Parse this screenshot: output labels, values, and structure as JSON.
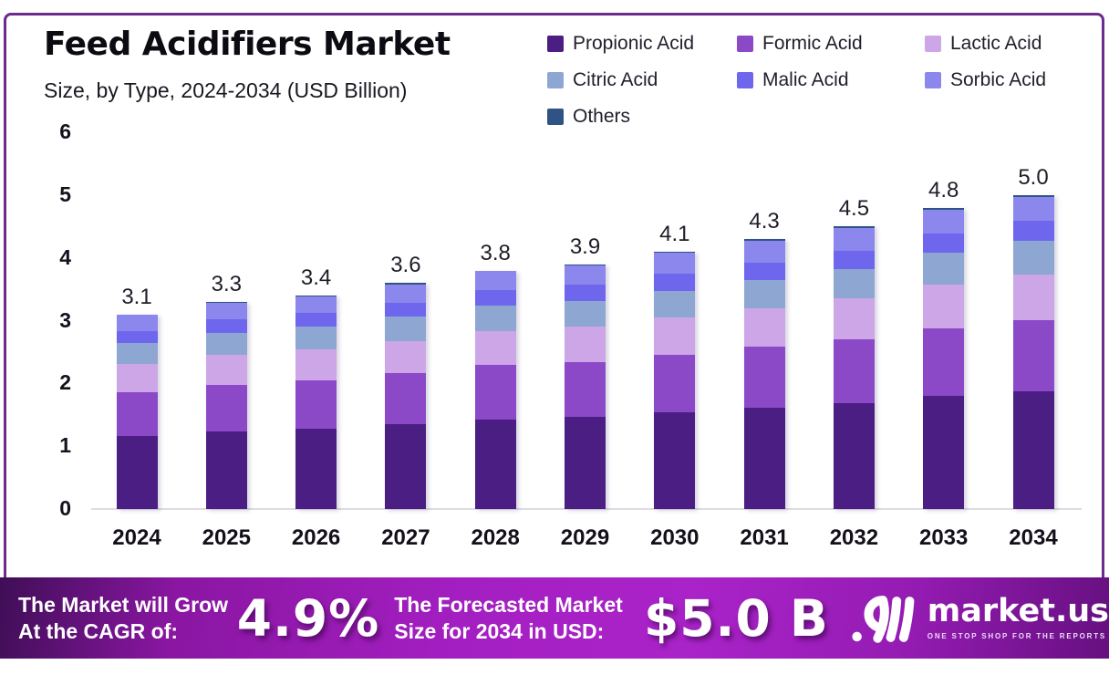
{
  "frame": {
    "border_color": "#6B2A8C"
  },
  "header": {
    "title": "Feed Acidifiers Market",
    "subtitle": "Size, by Type, 2024-2034 (USD Billion)"
  },
  "legend": {
    "items": [
      {
        "label": "Propionic Acid",
        "color": "#4A1E82"
      },
      {
        "label": "Formic Acid",
        "color": "#8B49C8"
      },
      {
        "label": "Lactic Acid",
        "color": "#CDA6E8"
      },
      {
        "label": "Citric Acid",
        "color": "#8EA6D2"
      },
      {
        "label": "Malic Acid",
        "color": "#6F66EE"
      },
      {
        "label": "Sorbic Acid",
        "color": "#8B87EC"
      },
      {
        "label": "Others",
        "color": "#2E5384"
      }
    ]
  },
  "chart_data": {
    "type": "bar",
    "stacked": true,
    "title": "Feed Acidifiers Market Size, by Type, 2024-2034 (USD Billion)",
    "xlabel": "",
    "ylabel": "USD Billion",
    "ylim": [
      0,
      6
    ],
    "yticks": [
      0,
      1,
      2,
      3,
      4,
      5,
      6
    ],
    "grid": false,
    "legend_position": "top-right",
    "categories": [
      "2024",
      "2025",
      "2026",
      "2027",
      "2028",
      "2029",
      "2030",
      "2031",
      "2032",
      "2033",
      "2034"
    ],
    "totals": [
      3.1,
      3.3,
      3.4,
      3.6,
      3.8,
      3.9,
      4.1,
      4.3,
      4.5,
      4.8,
      5.0
    ],
    "series": [
      {
        "name": "Propionic Acid",
        "color": "#4A1E82",
        "values": [
          1.16,
          1.24,
          1.28,
          1.35,
          1.43,
          1.46,
          1.54,
          1.61,
          1.69,
          1.8,
          1.88
        ]
      },
      {
        "name": "Formic Acid",
        "color": "#8B49C8",
        "values": [
          0.7,
          0.74,
          0.77,
          0.81,
          0.86,
          0.88,
          0.92,
          0.97,
          1.01,
          1.08,
          1.13
        ]
      },
      {
        "name": "Lactic Acid",
        "color": "#CDA6E8",
        "values": [
          0.45,
          0.48,
          0.49,
          0.52,
          0.55,
          0.57,
          0.59,
          0.62,
          0.65,
          0.7,
          0.73
        ]
      },
      {
        "name": "Citric Acid",
        "color": "#8EA6D2",
        "values": [
          0.33,
          0.35,
          0.36,
          0.38,
          0.4,
          0.41,
          0.43,
          0.45,
          0.47,
          0.5,
          0.53
        ]
      },
      {
        "name": "Malic Acid",
        "color": "#6F66EE",
        "values": [
          0.2,
          0.21,
          0.22,
          0.23,
          0.25,
          0.25,
          0.27,
          0.28,
          0.29,
          0.31,
          0.33
        ]
      },
      {
        "name": "Sorbic Acid",
        "color": "#8B87EC",
        "values": [
          0.25,
          0.26,
          0.27,
          0.29,
          0.3,
          0.31,
          0.33,
          0.34,
          0.36,
          0.38,
          0.37
        ]
      },
      {
        "name": "Others",
        "color": "#2E5384",
        "values": [
          0.01,
          0.02,
          0.01,
          0.02,
          0.01,
          0.02,
          0.02,
          0.03,
          0.03,
          0.03,
          0.03
        ]
      }
    ]
  },
  "banner": {
    "gradient": [
      "#3F0E56",
      "#8A16A2",
      "#A41FC2",
      "#AA23C9",
      "#941BB2",
      "#661080"
    ],
    "cagr_label_line1": "The Market will Grow",
    "cagr_label_line2": "At the CAGR of:",
    "cagr_value": "4.9%",
    "forecast_label_line1": "The Forecasted Market",
    "forecast_label_line2": "Size for 2034 in USD:",
    "forecast_value": "$5.0 B",
    "brand": {
      "name": "market.us",
      "tagline": "ONE STOP SHOP FOR THE REPORTS"
    }
  }
}
